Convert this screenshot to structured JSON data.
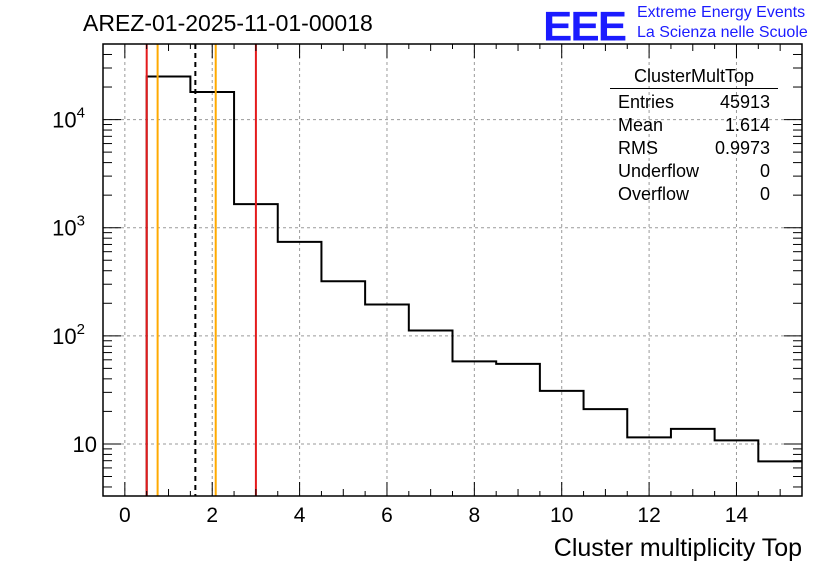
{
  "chart_data": {
    "type": "histogram",
    "title": "AREZ-01-2025-11-01-00018",
    "xlabel": "Cluster multiplicity Top",
    "ylabel": "",
    "yscale": "log",
    "xlim": [
      -0.5,
      15.5
    ],
    "ylim": [
      3.3,
      50000
    ],
    "bin_edges": [
      0.5,
      1.5,
      2.5,
      3.5,
      4.5,
      5.5,
      6.5,
      7.5,
      8.5,
      9.5,
      10.5,
      11.5,
      12.5,
      13.5,
      14.5,
      15.5
    ],
    "values": [
      25000,
      18000,
      1650,
      740,
      320,
      195,
      112,
      58,
      55,
      31,
      21,
      11.5,
      13.8,
      10.8,
      6.9
    ],
    "x_ticks": [
      0,
      2,
      4,
      6,
      8,
      10,
      12,
      14
    ],
    "y_ticks": [
      10,
      100,
      1000,
      10000
    ],
    "y_tick_labels": {
      "base": "10",
      "exps": [
        "",
        "2",
        "3",
        "4"
      ]
    },
    "vertical_lines": [
      {
        "x": 0.5,
        "color": "#e41a1c",
        "style": "solid"
      },
      {
        "x": 0.75,
        "color": "#ffaa00",
        "style": "solid"
      },
      {
        "x": 1.614,
        "color": "#000000",
        "style": "dashed"
      },
      {
        "x": 2.08,
        "color": "#ffaa00",
        "style": "solid"
      },
      {
        "x": 3.0,
        "color": "#e41a1c",
        "style": "solid"
      }
    ],
    "grid": true,
    "stats_box": {
      "name": "ClusterMultTop",
      "rows": [
        {
          "label": "Entries",
          "value": "45913"
        },
        {
          "label": "Mean",
          "value": "1.614"
        },
        {
          "label": "RMS",
          "value": "0.9973"
        },
        {
          "label": "Underflow",
          "value": "0"
        },
        {
          "label": "Overflow",
          "value": "0"
        }
      ]
    }
  },
  "logo": {
    "text": "EEE",
    "line1": "Extreme Energy Events",
    "line2": "La Scienza nelle Scuole"
  }
}
